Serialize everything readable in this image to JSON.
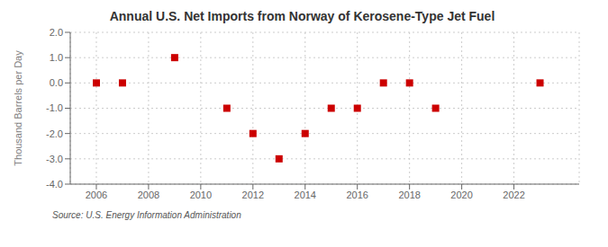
{
  "chart_data": {
    "type": "scatter",
    "title": "Annual U.S. Net Imports from Norway of Kerosene-Type Jet Fuel",
    "ylabel": "Thousand Barrels per Day",
    "source": "Source: U.S. Energy Information Administration",
    "x": [
      2006,
      2007,
      2009,
      2011,
      2012,
      2013,
      2014,
      2015,
      2016,
      2017,
      2018,
      2019,
      2023
    ],
    "values": [
      0,
      0,
      1.0,
      -1.0,
      -2.0,
      -3.0,
      -2.0,
      -1.0,
      -1.0,
      0,
      0,
      -1.0,
      0
    ],
    "color": "#cc0000",
    "marker": "square",
    "grid": true,
    "xlim": [
      2005.0,
      2024.5
    ],
    "xticks": [
      2006,
      2008,
      2010,
      2012,
      2014,
      2016,
      2018,
      2020,
      2022
    ],
    "ylim": [
      -4.0,
      2.0
    ],
    "yticks": [
      {
        "value": -4.0,
        "label": "-4.0"
      },
      {
        "value": -3.0,
        "label": "-3.0"
      },
      {
        "value": -2.0,
        "label": "-2.0"
      },
      {
        "value": -1.0,
        "label": "-1.0"
      },
      {
        "value": 0.0,
        "label": "0.0"
      },
      {
        "value": 1.0,
        "label": "1.0"
      },
      {
        "value": 2.0,
        "label": "2.0"
      }
    ]
  }
}
